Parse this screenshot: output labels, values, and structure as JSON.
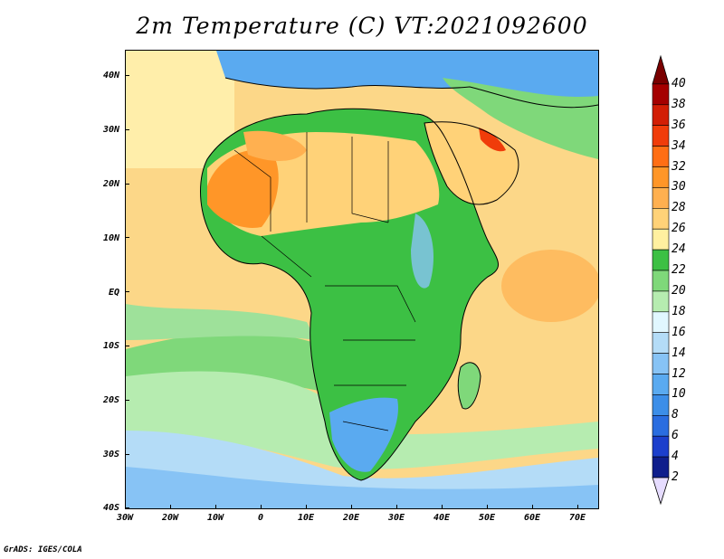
{
  "title": "2m Temperature (C) VT:2021092600",
  "credit": "GrADS: IGES/COLA",
  "map": {
    "lat_labels": [
      "40N",
      "30N",
      "20N",
      "10N",
      "EQ",
      "10S",
      "20S",
      "30S",
      "40S"
    ],
    "lon_labels": [
      "30W",
      "20W",
      "10W",
      "0",
      "10E",
      "20E",
      "30E",
      "40E",
      "50E",
      "60E",
      "70E"
    ],
    "lon_range": [
      -30,
      75
    ],
    "lat_range": [
      -40,
      45
    ]
  },
  "colorbar": {
    "levels": [
      "2",
      "4",
      "6",
      "8",
      "10",
      "12",
      "14",
      "16",
      "18",
      "20",
      "22",
      "24",
      "26",
      "28",
      "30",
      "32",
      "34",
      "36",
      "38",
      "40"
    ],
    "colors": [
      "#e6dcff",
      "#0f1e8c",
      "#1c3fcc",
      "#2a6de0",
      "#3c8ee8",
      "#5aaaf0",
      "#87c3f5",
      "#b4dcf7",
      "#e1f7ff",
      "#b6ecb0",
      "#7fd87a",
      "#3cc044",
      "#fff0a0",
      "#ffd278",
      "#ffb050",
      "#ff9628",
      "#ff6e14",
      "#f03c0a",
      "#d21e05",
      "#a50000",
      "#7a0000"
    ]
  }
}
